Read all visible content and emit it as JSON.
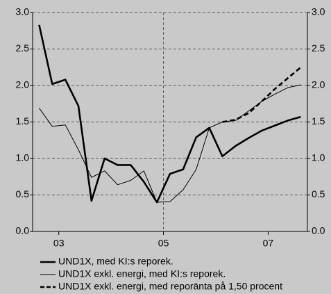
{
  "chart_data": {
    "type": "line",
    "x": [
      2002.625,
      2002.875,
      2003.125,
      2003.375,
      2003.625,
      2003.875,
      2004.125,
      2004.375,
      2004.625,
      2004.875,
      2005.125,
      2005.375,
      2005.625,
      2005.875,
      2006.125,
      2006.375,
      2006.625,
      2006.875,
      2007.125,
      2007.375,
      2007.625
    ],
    "series": [
      {
        "name": "UND1X, med KI:s reporek.",
        "color": "#000000",
        "width": 2.6,
        "dash": false,
        "values": [
          2.83,
          2.02,
          2.08,
          1.72,
          0.42,
          1.0,
          0.91,
          0.91,
          0.68,
          0.4,
          0.79,
          0.85,
          1.29,
          1.42,
          1.03,
          1.17,
          1.28,
          1.38,
          1.45,
          1.52,
          1.57
        ]
      },
      {
        "name": "UND1X exkl. energi, med KI:s reporek.",
        "color": "#000000",
        "width": 1,
        "dash": false,
        "values": [
          1.69,
          1.44,
          1.46,
          1.12,
          0.74,
          0.83,
          0.64,
          0.7,
          0.83,
          0.4,
          0.41,
          0.57,
          0.85,
          1.42,
          1.5,
          1.52,
          1.65,
          1.78,
          1.88,
          1.97,
          2.01
        ]
      },
      {
        "name": "UND1X exkl. energi, med reporänta på 1,50 procent",
        "color": "#000000",
        "width": 2.6,
        "dash": true,
        "values": [
          null,
          null,
          null,
          null,
          null,
          null,
          null,
          null,
          null,
          null,
          null,
          null,
          null,
          null,
          1.5,
          1.53,
          1.62,
          1.78,
          1.95,
          2.1,
          2.25
        ]
      }
    ],
    "xlim": [
      2002.5,
      2007.75
    ],
    "xticks": [
      {
        "value": 2003,
        "label": "03"
      },
      {
        "value": 2005,
        "label": "05"
      },
      {
        "value": 2007,
        "label": "07"
      }
    ],
    "ylim": [
      0,
      3
    ],
    "yticks": [
      {
        "value": 0,
        "label": "0.0"
      },
      {
        "value": 0.5,
        "label": "0.5"
      },
      {
        "value": 1,
        "label": "1.0"
      },
      {
        "value": 1.5,
        "label": "1.5"
      },
      {
        "value": 2,
        "label": "2.0"
      },
      {
        "value": 2.5,
        "label": "2.5"
      },
      {
        "value": 3,
        "label": "3.0"
      }
    ],
    "y2lim": [
      0,
      3
    ],
    "y2ticks": [
      {
        "value": 0,
        "label": "0.0"
      },
      {
        "value": 0.5,
        "label": "0.5"
      },
      {
        "value": 1,
        "label": "1.0"
      },
      {
        "value": 1.5,
        "label": "1.5"
      },
      {
        "value": 2,
        "label": "2.0"
      },
      {
        "value": 2.5,
        "label": "2.5"
      },
      {
        "value": 3,
        "label": "3.0"
      }
    ],
    "vline": 2005,
    "grid": true
  }
}
